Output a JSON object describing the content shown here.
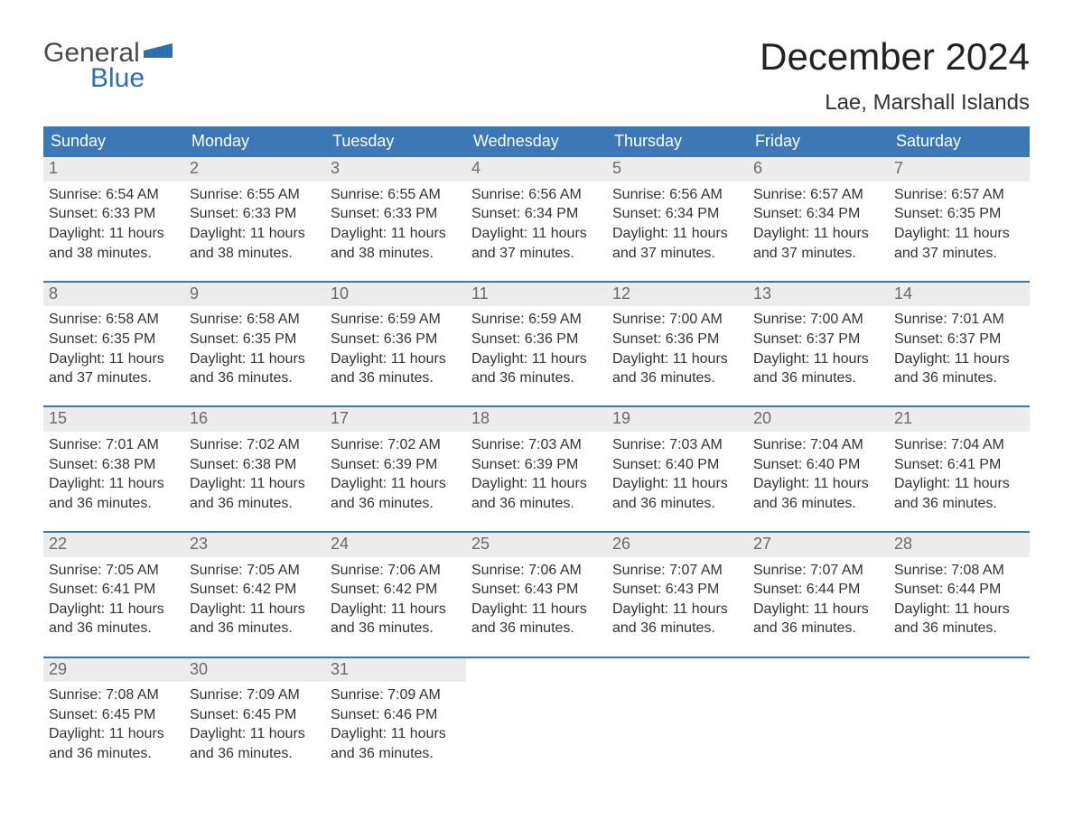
{
  "brand": {
    "line1": "General",
    "line2": "Blue",
    "flag_color": "#2f6fb0",
    "line1_color": "#4a4a4a"
  },
  "title": "December 2024",
  "location": "Lae, Marshall Islands",
  "colors": {
    "header_bg": "#3b78b5",
    "header_text": "#ffffff",
    "week_border": "#3b78b5",
    "daynum_bg": "#ececec",
    "daynum_text": "#6a6a6a",
    "body_text": "#333333",
    "page_bg": "#ffffff"
  },
  "typography": {
    "title_fontsize": 42,
    "location_fontsize": 24,
    "dow_fontsize": 18,
    "daynum_fontsize": 18,
    "body_fontsize": 16
  },
  "days_of_week": [
    "Sunday",
    "Monday",
    "Tuesday",
    "Wednesday",
    "Thursday",
    "Friday",
    "Saturday"
  ],
  "weeks": [
    [
      {
        "n": "1",
        "sunrise": "Sunrise: 6:54 AM",
        "sunset": "Sunset: 6:33 PM",
        "d1": "Daylight: 11 hours",
        "d2": "and 38 minutes."
      },
      {
        "n": "2",
        "sunrise": "Sunrise: 6:55 AM",
        "sunset": "Sunset: 6:33 PM",
        "d1": "Daylight: 11 hours",
        "d2": "and 38 minutes."
      },
      {
        "n": "3",
        "sunrise": "Sunrise: 6:55 AM",
        "sunset": "Sunset: 6:33 PM",
        "d1": "Daylight: 11 hours",
        "d2": "and 38 minutes."
      },
      {
        "n": "4",
        "sunrise": "Sunrise: 6:56 AM",
        "sunset": "Sunset: 6:34 PM",
        "d1": "Daylight: 11 hours",
        "d2": "and 37 minutes."
      },
      {
        "n": "5",
        "sunrise": "Sunrise: 6:56 AM",
        "sunset": "Sunset: 6:34 PM",
        "d1": "Daylight: 11 hours",
        "d2": "and 37 minutes."
      },
      {
        "n": "6",
        "sunrise": "Sunrise: 6:57 AM",
        "sunset": "Sunset: 6:34 PM",
        "d1": "Daylight: 11 hours",
        "d2": "and 37 minutes."
      },
      {
        "n": "7",
        "sunrise": "Sunrise: 6:57 AM",
        "sunset": "Sunset: 6:35 PM",
        "d1": "Daylight: 11 hours",
        "d2": "and 37 minutes."
      }
    ],
    [
      {
        "n": "8",
        "sunrise": "Sunrise: 6:58 AM",
        "sunset": "Sunset: 6:35 PM",
        "d1": "Daylight: 11 hours",
        "d2": "and 37 minutes."
      },
      {
        "n": "9",
        "sunrise": "Sunrise: 6:58 AM",
        "sunset": "Sunset: 6:35 PM",
        "d1": "Daylight: 11 hours",
        "d2": "and 36 minutes."
      },
      {
        "n": "10",
        "sunrise": "Sunrise: 6:59 AM",
        "sunset": "Sunset: 6:36 PM",
        "d1": "Daylight: 11 hours",
        "d2": "and 36 minutes."
      },
      {
        "n": "11",
        "sunrise": "Sunrise: 6:59 AM",
        "sunset": "Sunset: 6:36 PM",
        "d1": "Daylight: 11 hours",
        "d2": "and 36 minutes."
      },
      {
        "n": "12",
        "sunrise": "Sunrise: 7:00 AM",
        "sunset": "Sunset: 6:36 PM",
        "d1": "Daylight: 11 hours",
        "d2": "and 36 minutes."
      },
      {
        "n": "13",
        "sunrise": "Sunrise: 7:00 AM",
        "sunset": "Sunset: 6:37 PM",
        "d1": "Daylight: 11 hours",
        "d2": "and 36 minutes."
      },
      {
        "n": "14",
        "sunrise": "Sunrise: 7:01 AM",
        "sunset": "Sunset: 6:37 PM",
        "d1": "Daylight: 11 hours",
        "d2": "and 36 minutes."
      }
    ],
    [
      {
        "n": "15",
        "sunrise": "Sunrise: 7:01 AM",
        "sunset": "Sunset: 6:38 PM",
        "d1": "Daylight: 11 hours",
        "d2": "and 36 minutes."
      },
      {
        "n": "16",
        "sunrise": "Sunrise: 7:02 AM",
        "sunset": "Sunset: 6:38 PM",
        "d1": "Daylight: 11 hours",
        "d2": "and 36 minutes."
      },
      {
        "n": "17",
        "sunrise": "Sunrise: 7:02 AM",
        "sunset": "Sunset: 6:39 PM",
        "d1": "Daylight: 11 hours",
        "d2": "and 36 minutes."
      },
      {
        "n": "18",
        "sunrise": "Sunrise: 7:03 AM",
        "sunset": "Sunset: 6:39 PM",
        "d1": "Daylight: 11 hours",
        "d2": "and 36 minutes."
      },
      {
        "n": "19",
        "sunrise": "Sunrise: 7:03 AM",
        "sunset": "Sunset: 6:40 PM",
        "d1": "Daylight: 11 hours",
        "d2": "and 36 minutes."
      },
      {
        "n": "20",
        "sunrise": "Sunrise: 7:04 AM",
        "sunset": "Sunset: 6:40 PM",
        "d1": "Daylight: 11 hours",
        "d2": "and 36 minutes."
      },
      {
        "n": "21",
        "sunrise": "Sunrise: 7:04 AM",
        "sunset": "Sunset: 6:41 PM",
        "d1": "Daylight: 11 hours",
        "d2": "and 36 minutes."
      }
    ],
    [
      {
        "n": "22",
        "sunrise": "Sunrise: 7:05 AM",
        "sunset": "Sunset: 6:41 PM",
        "d1": "Daylight: 11 hours",
        "d2": "and 36 minutes."
      },
      {
        "n": "23",
        "sunrise": "Sunrise: 7:05 AM",
        "sunset": "Sunset: 6:42 PM",
        "d1": "Daylight: 11 hours",
        "d2": "and 36 minutes."
      },
      {
        "n": "24",
        "sunrise": "Sunrise: 7:06 AM",
        "sunset": "Sunset: 6:42 PM",
        "d1": "Daylight: 11 hours",
        "d2": "and 36 minutes."
      },
      {
        "n": "25",
        "sunrise": "Sunrise: 7:06 AM",
        "sunset": "Sunset: 6:43 PM",
        "d1": "Daylight: 11 hours",
        "d2": "and 36 minutes."
      },
      {
        "n": "26",
        "sunrise": "Sunrise: 7:07 AM",
        "sunset": "Sunset: 6:43 PM",
        "d1": "Daylight: 11 hours",
        "d2": "and 36 minutes."
      },
      {
        "n": "27",
        "sunrise": "Sunrise: 7:07 AM",
        "sunset": "Sunset: 6:44 PM",
        "d1": "Daylight: 11 hours",
        "d2": "and 36 minutes."
      },
      {
        "n": "28",
        "sunrise": "Sunrise: 7:08 AM",
        "sunset": "Sunset: 6:44 PM",
        "d1": "Daylight: 11 hours",
        "d2": "and 36 minutes."
      }
    ],
    [
      {
        "n": "29",
        "sunrise": "Sunrise: 7:08 AM",
        "sunset": "Sunset: 6:45 PM",
        "d1": "Daylight: 11 hours",
        "d2": "and 36 minutes."
      },
      {
        "n": "30",
        "sunrise": "Sunrise: 7:09 AM",
        "sunset": "Sunset: 6:45 PM",
        "d1": "Daylight: 11 hours",
        "d2": "and 36 minutes."
      },
      {
        "n": "31",
        "sunrise": "Sunrise: 7:09 AM",
        "sunset": "Sunset: 6:46 PM",
        "d1": "Daylight: 11 hours",
        "d2": "and 36 minutes."
      },
      {
        "empty": true
      },
      {
        "empty": true
      },
      {
        "empty": true
      },
      {
        "empty": true
      }
    ]
  ]
}
